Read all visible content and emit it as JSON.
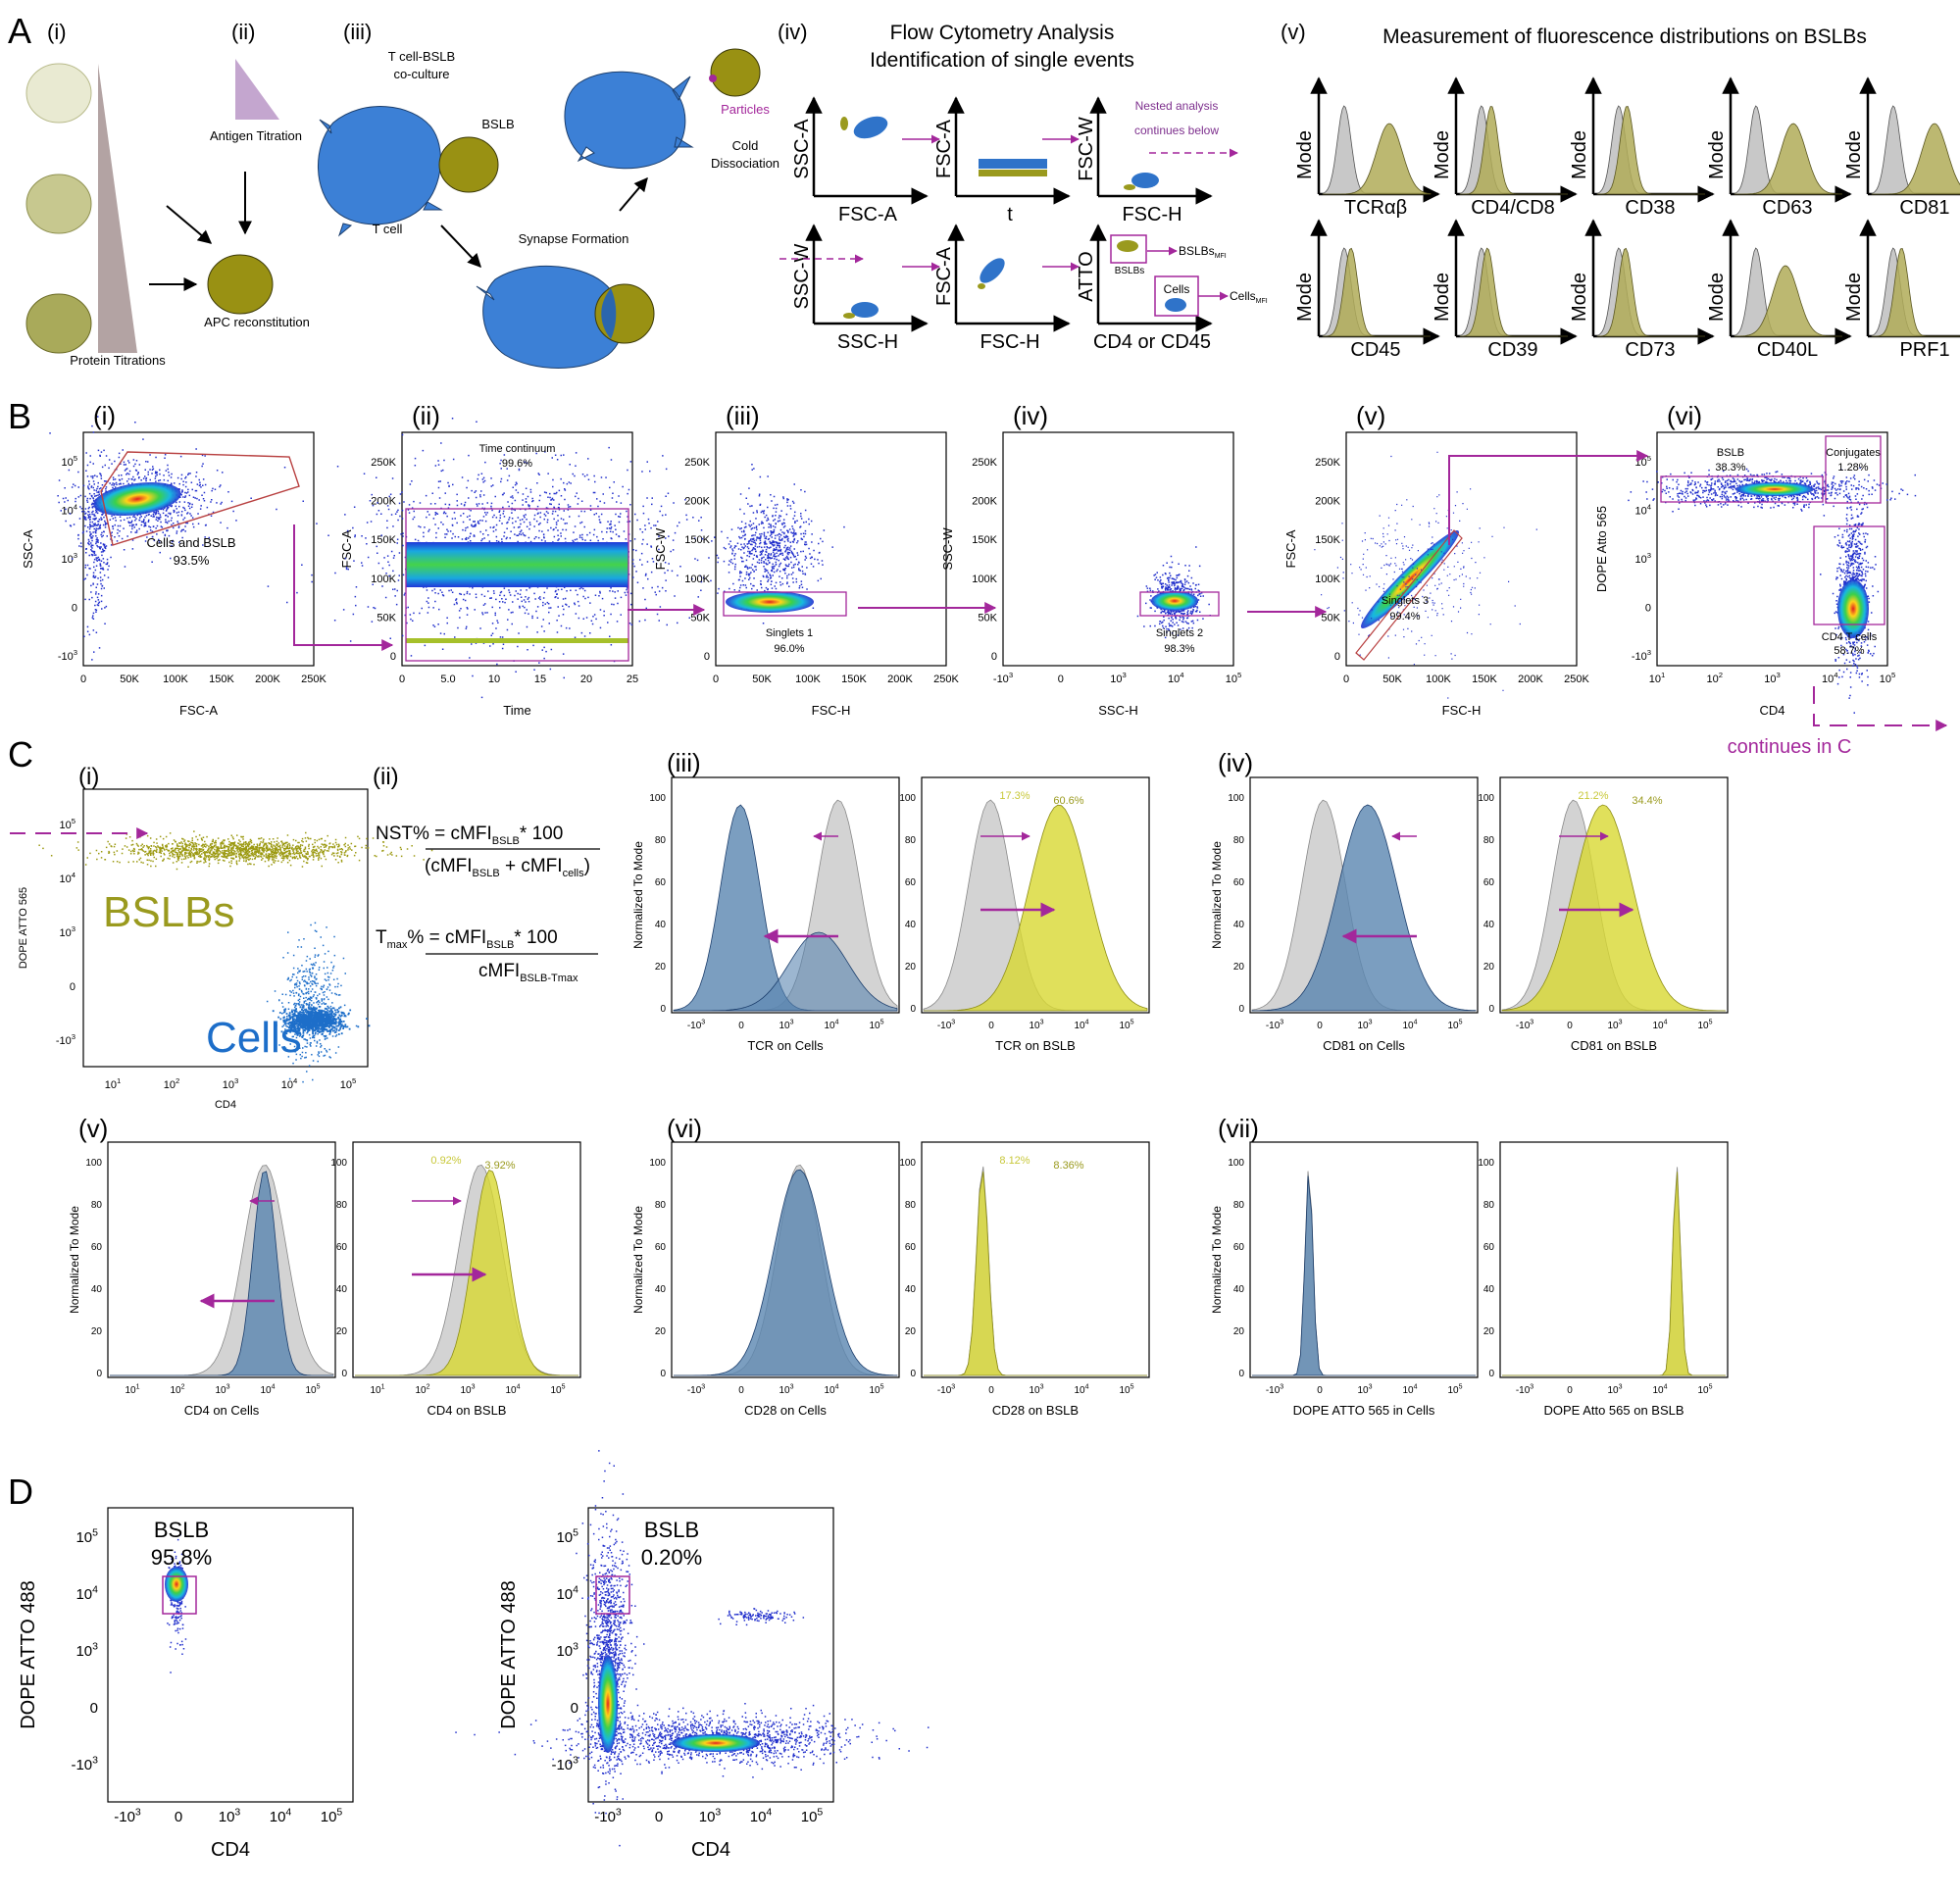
{
  "figure": {
    "A": {
      "letter": "A",
      "panel_i": {
        "label": "(i)",
        "protein_titrations": "Protein Titrations"
      },
      "panel_ii": {
        "label": "(ii)",
        "antigen_titration": "Antigen Titration",
        "apc_reconstitution": "APC reconstitution"
      },
      "panel_iii": {
        "label": "(iii)",
        "coculture_line1": "T cell-BSLB",
        "coculture_line2": "co-culture",
        "bslb": "BSLB",
        "t_cell": "T cell",
        "synapse_formation": "Synapse Formation",
        "particles": "Particles",
        "cold_line1": "Cold",
        "cold_line2": "Dissociation"
      },
      "panel_iv": {
        "label": "(iv)",
        "title_line1": "Flow Cytometry Analysis",
        "title_line2": "Identification of single events",
        "plots": [
          {
            "y": "SSC-A",
            "x": "FSC-A"
          },
          {
            "y": "FSC-A",
            "x": "t"
          },
          {
            "y": "FSC-W",
            "x": "FSC-H"
          },
          {
            "y": "SSC-W",
            "x": "SSC-H"
          },
          {
            "y": "FSC-A",
            "x": "FSC-H"
          },
          {
            "y": "ATTO",
            "x": "CD4 or CD45"
          }
        ],
        "nested_line1": "Nested analysis",
        "nested_line2": "continues below",
        "bslbs_gate": "BSLBs",
        "cells_gate": "Cells",
        "bslbs_mfi": "BSLBs",
        "cells_mfi": "Cells",
        "mfi_sub": "MFI"
      },
      "panel_v": {
        "label": "(v)",
        "title": "Measurement of fluorescence distributions on BSLBs",
        "ylabel": "Mode",
        "markers": [
          {
            "name": "TCRαβ",
            "shift": 0.55
          },
          {
            "name": "CD4/CD8",
            "shift": 0.1
          },
          {
            "name": "CD38",
            "shift": 0.08
          },
          {
            "name": "CD63",
            "shift": 0.45
          },
          {
            "name": "CD81",
            "shift": 0.5
          },
          {
            "name": "CD45",
            "shift": 0.06
          },
          {
            "name": "CD39",
            "shift": 0.05
          },
          {
            "name": "CD73",
            "shift": 0.06
          },
          {
            "name": "CD40L",
            "shift": 0.35
          },
          {
            "name": "PRF1",
            "shift": 0.08
          }
        ]
      }
    },
    "B": {
      "letter": "B",
      "panels": [
        {
          "label": "(i)",
          "xlabel": "FSC-A",
          "ylabel": "SSC-A",
          "gate_name": "Cells and BSLB",
          "gate_pct": "93.5%",
          "x_ticks": [
            "0",
            "50K",
            "100K",
            "150K",
            "200K",
            "250K"
          ],
          "y_ticks": [
            "10^5",
            "10^4",
            "10^3",
            "0",
            "-10^3"
          ]
        },
        {
          "label": "(ii)",
          "xlabel": "Time",
          "ylabel": "FSC-A",
          "gate_name": "Time continuum",
          "gate_pct": "99.6%",
          "x_ticks": [
            "0",
            "5.0",
            "10",
            "15",
            "20",
            "25"
          ],
          "y_ticks": [
            "250K",
            "200K",
            "150K",
            "100K",
            "50K",
            "0"
          ]
        },
        {
          "label": "(iii)",
          "xlabel": "FSC-H",
          "ylabel": "FSC-W",
          "gate_name": "Singlets 1",
          "gate_pct": "96.0%",
          "x_ticks": [
            "0",
            "50K",
            "100K",
            "150K",
            "200K",
            "250K"
          ],
          "y_ticks": [
            "250K",
            "200K",
            "150K",
            "100K",
            "50K",
            "0"
          ]
        },
        {
          "label": "(iv)",
          "xlabel": "SSC-H",
          "ylabel": "SSC-W",
          "gate_name": "Singlets 2",
          "gate_pct": "98.3%",
          "x_ticks": [
            "-10^3",
            "0",
            "10^3",
            "10^4",
            "10^5"
          ],
          "y_ticks": [
            "250K",
            "200K",
            "150K",
            "100K",
            "50K",
            "0"
          ]
        },
        {
          "label": "(v)",
          "xlabel": "FSC-H",
          "ylabel": "FSC-A",
          "gate_name": "Singlets 3",
          "gate_pct": "99.4%",
          "x_ticks": [
            "0",
            "50K",
            "100K",
            "150K",
            "200K",
            "250K"
          ],
          "y_ticks": [
            "250K",
            "200K",
            "150K",
            "100K",
            "50K",
            "0"
          ]
        },
        {
          "label": "(vi)",
          "xlabel": "CD4",
          "ylabel": "DOPE Atto 565",
          "gates": [
            {
              "name": "BSLB",
              "pct": "38.3%"
            },
            {
              "name": "Conjugates",
              "pct": "1.28%"
            },
            {
              "name": "CD4 T cells",
              "pct": "58.7%"
            }
          ],
          "x_ticks": [
            "10^1",
            "10^2",
            "10^3",
            "10^4",
            "10^5"
          ],
          "y_ticks": [
            "10^5",
            "10^4",
            "10^3",
            "0",
            "-10^3"
          ]
        }
      ],
      "continues": "continues in C"
    },
    "C": {
      "letter": "C",
      "panel_i": {
        "label": "(i)",
        "xlabel": "CD4",
        "ylabel": "DOPE ATTO 565",
        "bslbs": "BSLBs",
        "cells": "Cells"
      },
      "panel_ii": {
        "label": "(ii)",
        "nst_lhs": "NST% = cMFI",
        "nst_sub1": "BSLB",
        "nst_times": "* 100",
        "nst_den_open": "(cMFI",
        "nst_den_sub1": "BSLB",
        "nst_den_plus": " + cMFI",
        "nst_den_sub2": "cells",
        "nst_den_close": ")",
        "tmax_T": "T",
        "tmax_sub": "max",
        "tmax_eq": "% = cMFI",
        "tmax_sub1": "BSLB",
        "tmax_times": "* 100",
        "tmax_den": "cMFI",
        "tmax_den_sub": "BSLB-Tmax"
      },
      "ylabel": "Normalized To Mode",
      "y_ticks": [
        "100",
        "80",
        "60",
        "40",
        "20",
        "0"
      ],
      "groups": [
        {
          "label": "(iii)",
          "plots": [
            {
              "xlabel": "TCR on Cells",
              "x_ticks": [
                "-10^3",
                "0",
                "10^3",
                "10^4",
                "10^5"
              ]
            },
            {
              "xlabel": "TCR on BSLB",
              "x_ticks": [
                "-10^3",
                "0",
                "10^3",
                "10^4",
                "10^5"
              ],
              "pct1": "17.3%",
              "pct2": "60.6%"
            }
          ]
        },
        {
          "label": "(iv)",
          "plots": [
            {
              "xlabel": "CD81 on Cells",
              "x_ticks": [
                "-10^3",
                "0",
                "10^3",
                "10^4",
                "10^5"
              ]
            },
            {
              "xlabel": "CD81 on BSLB",
              "x_ticks": [
                "-10^3",
                "0",
                "10^3",
                "10^4",
                "10^5"
              ],
              "pct1": "21.2%",
              "pct2": "34.4%"
            }
          ]
        },
        {
          "label": "(v)",
          "plots": [
            {
              "xlabel": "CD4 on Cells",
              "x_ticks": [
                "10^1",
                "10^2",
                "10^3",
                "10^4",
                "10^5"
              ]
            },
            {
              "xlabel": "CD4 on BSLB",
              "x_ticks": [
                "10^1",
                "10^2",
                "10^3",
                "10^4",
                "10^5"
              ],
              "pct1": "0.92%",
              "pct2": "3.92%"
            }
          ]
        },
        {
          "label": "(vi)",
          "plots": [
            {
              "xlabel": "CD28 on Cells",
              "x_ticks": [
                "-10^3",
                "0",
                "10^3",
                "10^4",
                "10^5"
              ]
            },
            {
              "xlabel": "CD28 on BSLB",
              "x_ticks": [
                "-10^3",
                "0",
                "10^3",
                "10^4",
                "10^5"
              ],
              "pct1": "8.12%",
              "pct2": "8.36%"
            }
          ]
        },
        {
          "label": "(vii)",
          "plots": [
            {
              "xlabel": "DOPE ATTO 565 in Cells",
              "x_ticks": [
                "-10^3",
                "0",
                "10^3",
                "10^4",
                "10^5"
              ]
            },
            {
              "xlabel": "DOPE Atto 565 on BSLB",
              "x_ticks": [
                "-10^3",
                "0",
                "10^3",
                "10^4",
                "10^5"
              ]
            }
          ]
        }
      ]
    },
    "D": {
      "letter": "D",
      "plots": [
        {
          "xlabel": "CD4",
          "ylabel": "DOPE ATTO 488",
          "gate_name": "BSLB",
          "gate_pct": "95.8%"
        },
        {
          "xlabel": "CD4",
          "ylabel": "DOPE ATTO 488",
          "gate_name": "BSLB",
          "gate_pct": "0.20%"
        }
      ],
      "x_ticks": [
        "-10^3",
        "0",
        "10^3",
        "10^4",
        "10^5"
      ],
      "y_ticks": [
        "10^5",
        "10^4",
        "10^3",
        "0",
        "-10^3"
      ]
    }
  },
  "colors": {
    "cell_blue": "#2f73c9",
    "bslb_olive": "#9a9a1e",
    "bslb_yellow": "#d8d832",
    "gray_hist": "#bdbdbd",
    "steel_blue": "#5a86b0",
    "magenta": "#a3279b",
    "gate_red": "#b84040"
  }
}
